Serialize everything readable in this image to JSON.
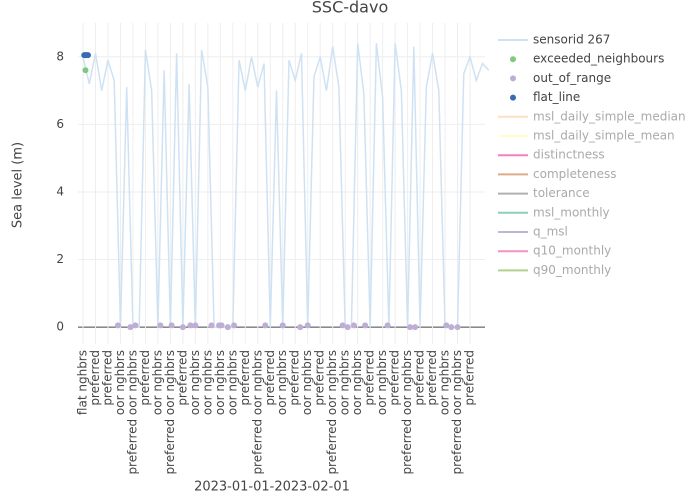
{
  "chart_data": {
    "type": "line",
    "title": "SSC-davo",
    "xlabel": "2023-01-01-2023-02-01",
    "ylabel": "Sea level (m)",
    "xlim": [
      -0.4,
      32.2
    ],
    "ylim": [
      -0.5,
      9
    ],
    "yticks": [
      0,
      2,
      4,
      6,
      8
    ],
    "grid": true,
    "xticks": [
      {
        "value": 0,
        "label": "flat nghbrs"
      },
      {
        "value": 1,
        "label": "preferred"
      },
      {
        "value": 2,
        "label": "preferred"
      },
      {
        "value": 3,
        "label": "oor nghbrs"
      },
      {
        "value": 4,
        "label": "preferred oor nghbrs"
      },
      {
        "value": 5,
        "label": "preferred"
      },
      {
        "value": 6,
        "label": "oor nghbrs"
      },
      {
        "value": 7,
        "label": "preferred oor nghbrs"
      },
      {
        "value": 8,
        "label": "preferred"
      },
      {
        "value": 9,
        "label": "oor nghbrs"
      },
      {
        "value": 10,
        "label": "oor nghbrs"
      },
      {
        "value": 11,
        "label": "oor nghbrs"
      },
      {
        "value": 12,
        "label": "oor nghbrs"
      },
      {
        "value": 13,
        "label": "preferred"
      },
      {
        "value": 14,
        "label": "preferred oor nghbrs"
      },
      {
        "value": 15,
        "label": "preferred"
      },
      {
        "value": 16,
        "label": "oor nghbrs"
      },
      {
        "value": 17,
        "label": "preferred"
      },
      {
        "value": 18,
        "label": "oor nghbrs"
      },
      {
        "value": 19,
        "label": "preferred"
      },
      {
        "value": 20,
        "label": "preferred oor nghbrs"
      },
      {
        "value": 21,
        "label": "oor nghbrs"
      },
      {
        "value": 22,
        "label": "oor nghbrs"
      },
      {
        "value": 23,
        "label": "preferred"
      },
      {
        "value": 24,
        "label": "oor nghbrs"
      },
      {
        "value": 25,
        "label": "preferred"
      },
      {
        "value": 26,
        "label": "preferred oor nghbrs"
      },
      {
        "value": 27,
        "label": "preferred"
      },
      {
        "value": 28,
        "label": "preferred"
      },
      {
        "value": 29,
        "label": "oor nghbrs"
      },
      {
        "value": 30,
        "label": "preferred oor nghbrs"
      },
      {
        "value": 31,
        "label": "preferred"
      }
    ],
    "series": [
      {
        "name": "sensorid 267",
        "color": "#cfe2f3",
        "mode": "line",
        "x": [
          0,
          0.5,
          1,
          1.5,
          2,
          2.5,
          3,
          3.5,
          4,
          4.5,
          5,
          5.5,
          6,
          6.5,
          7,
          7.5,
          8,
          8.5,
          9,
          9.5,
          10,
          10.5,
          11,
          11.5,
          12,
          12.5,
          13,
          13.5,
          14,
          14.5,
          15,
          15.5,
          16,
          16.5,
          17,
          17.5,
          18,
          18.5,
          19,
          19.5,
          20,
          20.5,
          21,
          21.5,
          22,
          22.5,
          23,
          23.5,
          24,
          24.5,
          25,
          25.5,
          26,
          26.5,
          27,
          27.5,
          28,
          28.5,
          29,
          29.5,
          30,
          30.5,
          31,
          31.5,
          32,
          32.5
        ],
        "values": [
          8.0,
          7.2,
          8.1,
          7.0,
          7.9,
          7.3,
          0,
          7.1,
          0,
          0,
          8.2,
          7.0,
          0,
          7.6,
          0,
          8.1,
          0,
          7.2,
          0,
          8.2,
          7.1,
          0,
          0,
          0,
          0,
          7.9,
          7.0,
          8.0,
          7.1,
          7.8,
          0,
          7.0,
          0,
          7.9,
          7.3,
          8.1,
          0,
          7.4,
          8.0,
          7.0,
          8.3,
          7.1,
          0,
          0,
          8.4,
          6.9,
          0,
          8.4,
          6.8,
          0,
          8.4,
          7.0,
          0,
          8.3,
          0,
          7.1,
          8.1,
          7.0,
          0,
          0,
          0,
          7.5,
          8.0,
          7.3,
          7.8,
          7.6
        ]
      },
      {
        "name": "exceeded_neighbours",
        "color": "#7fc97f",
        "mode": "markers",
        "x": [
          0.2
        ],
        "values": [
          7.6
        ]
      },
      {
        "name": "out_of_range",
        "color": "#beaed4",
        "mode": "markers",
        "x": [
          2.8,
          3.8,
          4.2,
          6.2,
          7.1,
          8,
          8.6,
          9,
          10.3,
          10.9,
          11.1,
          11.6,
          12.1,
          14.6,
          16,
          17.4,
          18,
          20.8,
          21.2,
          21.7,
          22.6,
          24.4,
          26.2,
          26.6,
          29.1,
          29.5,
          30
        ],
        "values": [
          0.05,
          0,
          0.05,
          0.05,
          0.05,
          0,
          0.05,
          0.05,
          0.05,
          0.05,
          0.05,
          0,
          0.05,
          0.05,
          0.05,
          0,
          0.05,
          0.05,
          0,
          0.05,
          0.05,
          0.05,
          0,
          0,
          0.05,
          0,
          0
        ]
      },
      {
        "name": "flat_line",
        "color": "#386cb0",
        "mode": "markers",
        "x": [
          0.1,
          0.2,
          0.3,
          0.4
        ],
        "values": [
          8.05,
          8.05,
          8.05,
          8.05
        ]
      }
    ],
    "legend_only": [
      {
        "name": "msl_daily_simple_median",
        "color": "#fdc086"
      },
      {
        "name": "msl_daily_simple_mean",
        "color": "#ffff99"
      },
      {
        "name": "distinctness",
        "color": "#f0027f"
      },
      {
        "name": "completeness",
        "color": "#bf5b17"
      },
      {
        "name": "tolerance",
        "color": "#666666"
      },
      {
        "name": "msl_monthly",
        "color": "#1b9e77"
      },
      {
        "name": "q_msl",
        "color": "#7570b3"
      },
      {
        "name": "q10_monthly",
        "color": "#e7298a"
      },
      {
        "name": "q90_monthly",
        "color": "#66a61e"
      }
    ]
  }
}
